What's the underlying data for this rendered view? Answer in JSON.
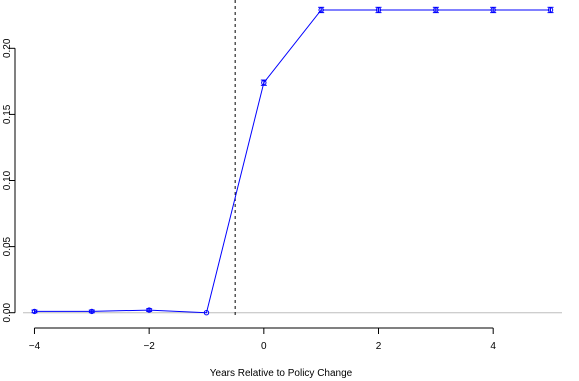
{
  "chart_data": {
    "type": "line",
    "title": "",
    "xlabel": "Years Relative to Policy Change",
    "ylabel": "",
    "xlim": [
      -4.2,
      5.2
    ],
    "ylim": [
      -0.004,
      0.232
    ],
    "x_ticks": [
      -4,
      -2,
      0,
      2,
      4
    ],
    "x_tick_labels": [
      "−4",
      "−2",
      "0",
      "2",
      "4"
    ],
    "y_ticks": [
      0.0,
      0.05,
      0.1,
      0.15,
      0.2
    ],
    "y_tick_labels": [
      "0.00",
      "0.05",
      "0.10",
      "0.15",
      "0.20"
    ],
    "reference_line_y": 0,
    "reference_line_y_color": "#bebebe",
    "vertical_line_x": -0.5,
    "vertical_line_style": "dashed",
    "series": [
      {
        "color": "#0000ff",
        "x": [
          -4,
          -3,
          -2,
          -1,
          0,
          1,
          2,
          3,
          4,
          5
        ],
        "y": [
          0.001,
          0.001,
          0.002,
          0.0,
          0.174,
          0.229,
          0.229,
          0.229,
          0.229,
          0.229
        ],
        "ci_low": [
          0.0,
          0.0,
          0.001,
          0.0,
          0.172,
          0.227,
          0.227,
          0.227,
          0.227,
          0.227
        ],
        "ci_high": [
          0.002,
          0.002,
          0.003,
          0.0,
          0.176,
          0.231,
          0.231,
          0.231,
          0.231,
          0.231
        ]
      }
    ],
    "grid": false,
    "legend": "none"
  }
}
